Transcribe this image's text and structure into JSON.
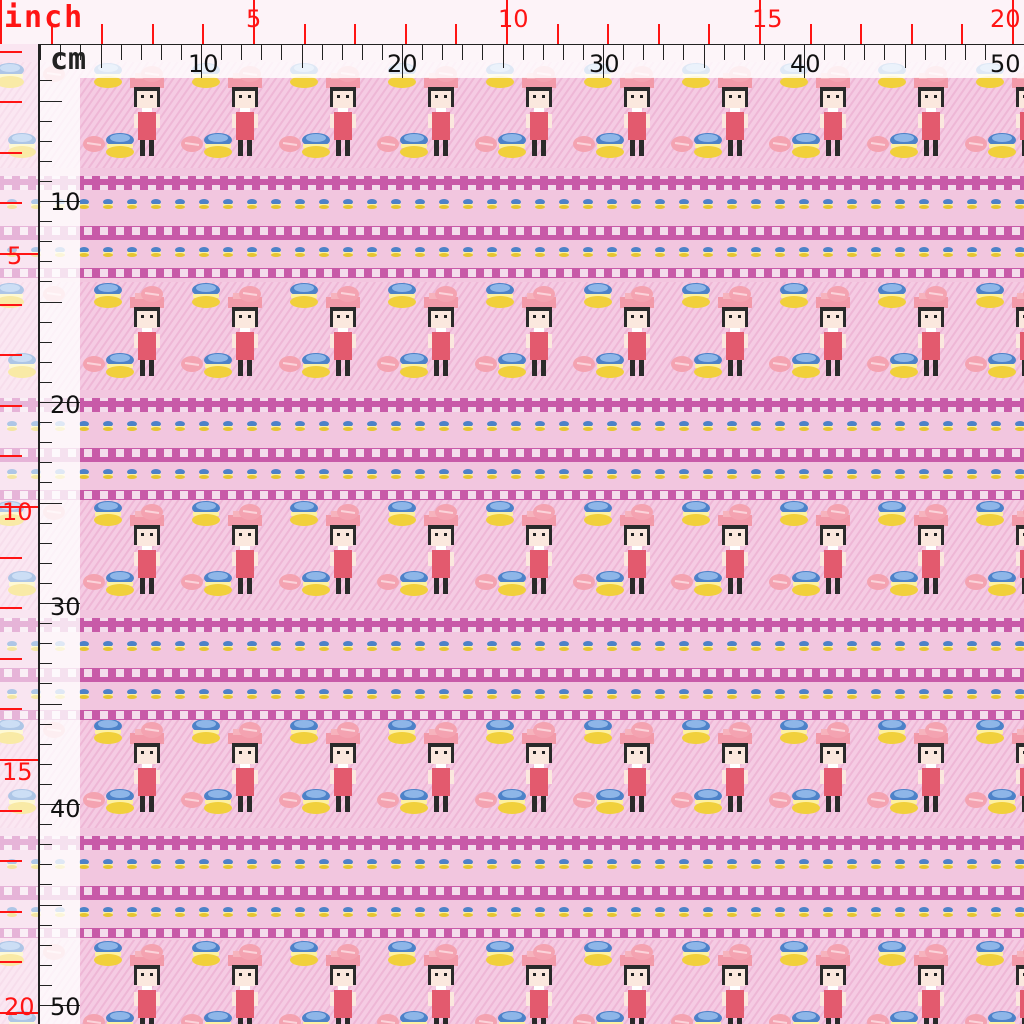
{
  "rulers": {
    "inch": {
      "unit_label": "inch",
      "top_labels": [
        "5",
        "10",
        "15",
        "20"
      ],
      "left_labels": [
        "5",
        "10",
        "15",
        "20"
      ],
      "color": "#ff1414"
    },
    "cm": {
      "unit_label": "cm",
      "top_labels": [
        "10",
        "20",
        "30",
        "40",
        "50"
      ],
      "left_labels": [
        "10",
        "20",
        "30",
        "40",
        "50"
      ],
      "color": "#111111"
    }
  },
  "fabric": {
    "background_color": "#f3c6df",
    "stripe_color": "#c85aa8",
    "motifs": [
      "girl-figure",
      "blue-macaron",
      "pink-macaron",
      "mini-macaron-row",
      "checker-band"
    ]
  }
}
